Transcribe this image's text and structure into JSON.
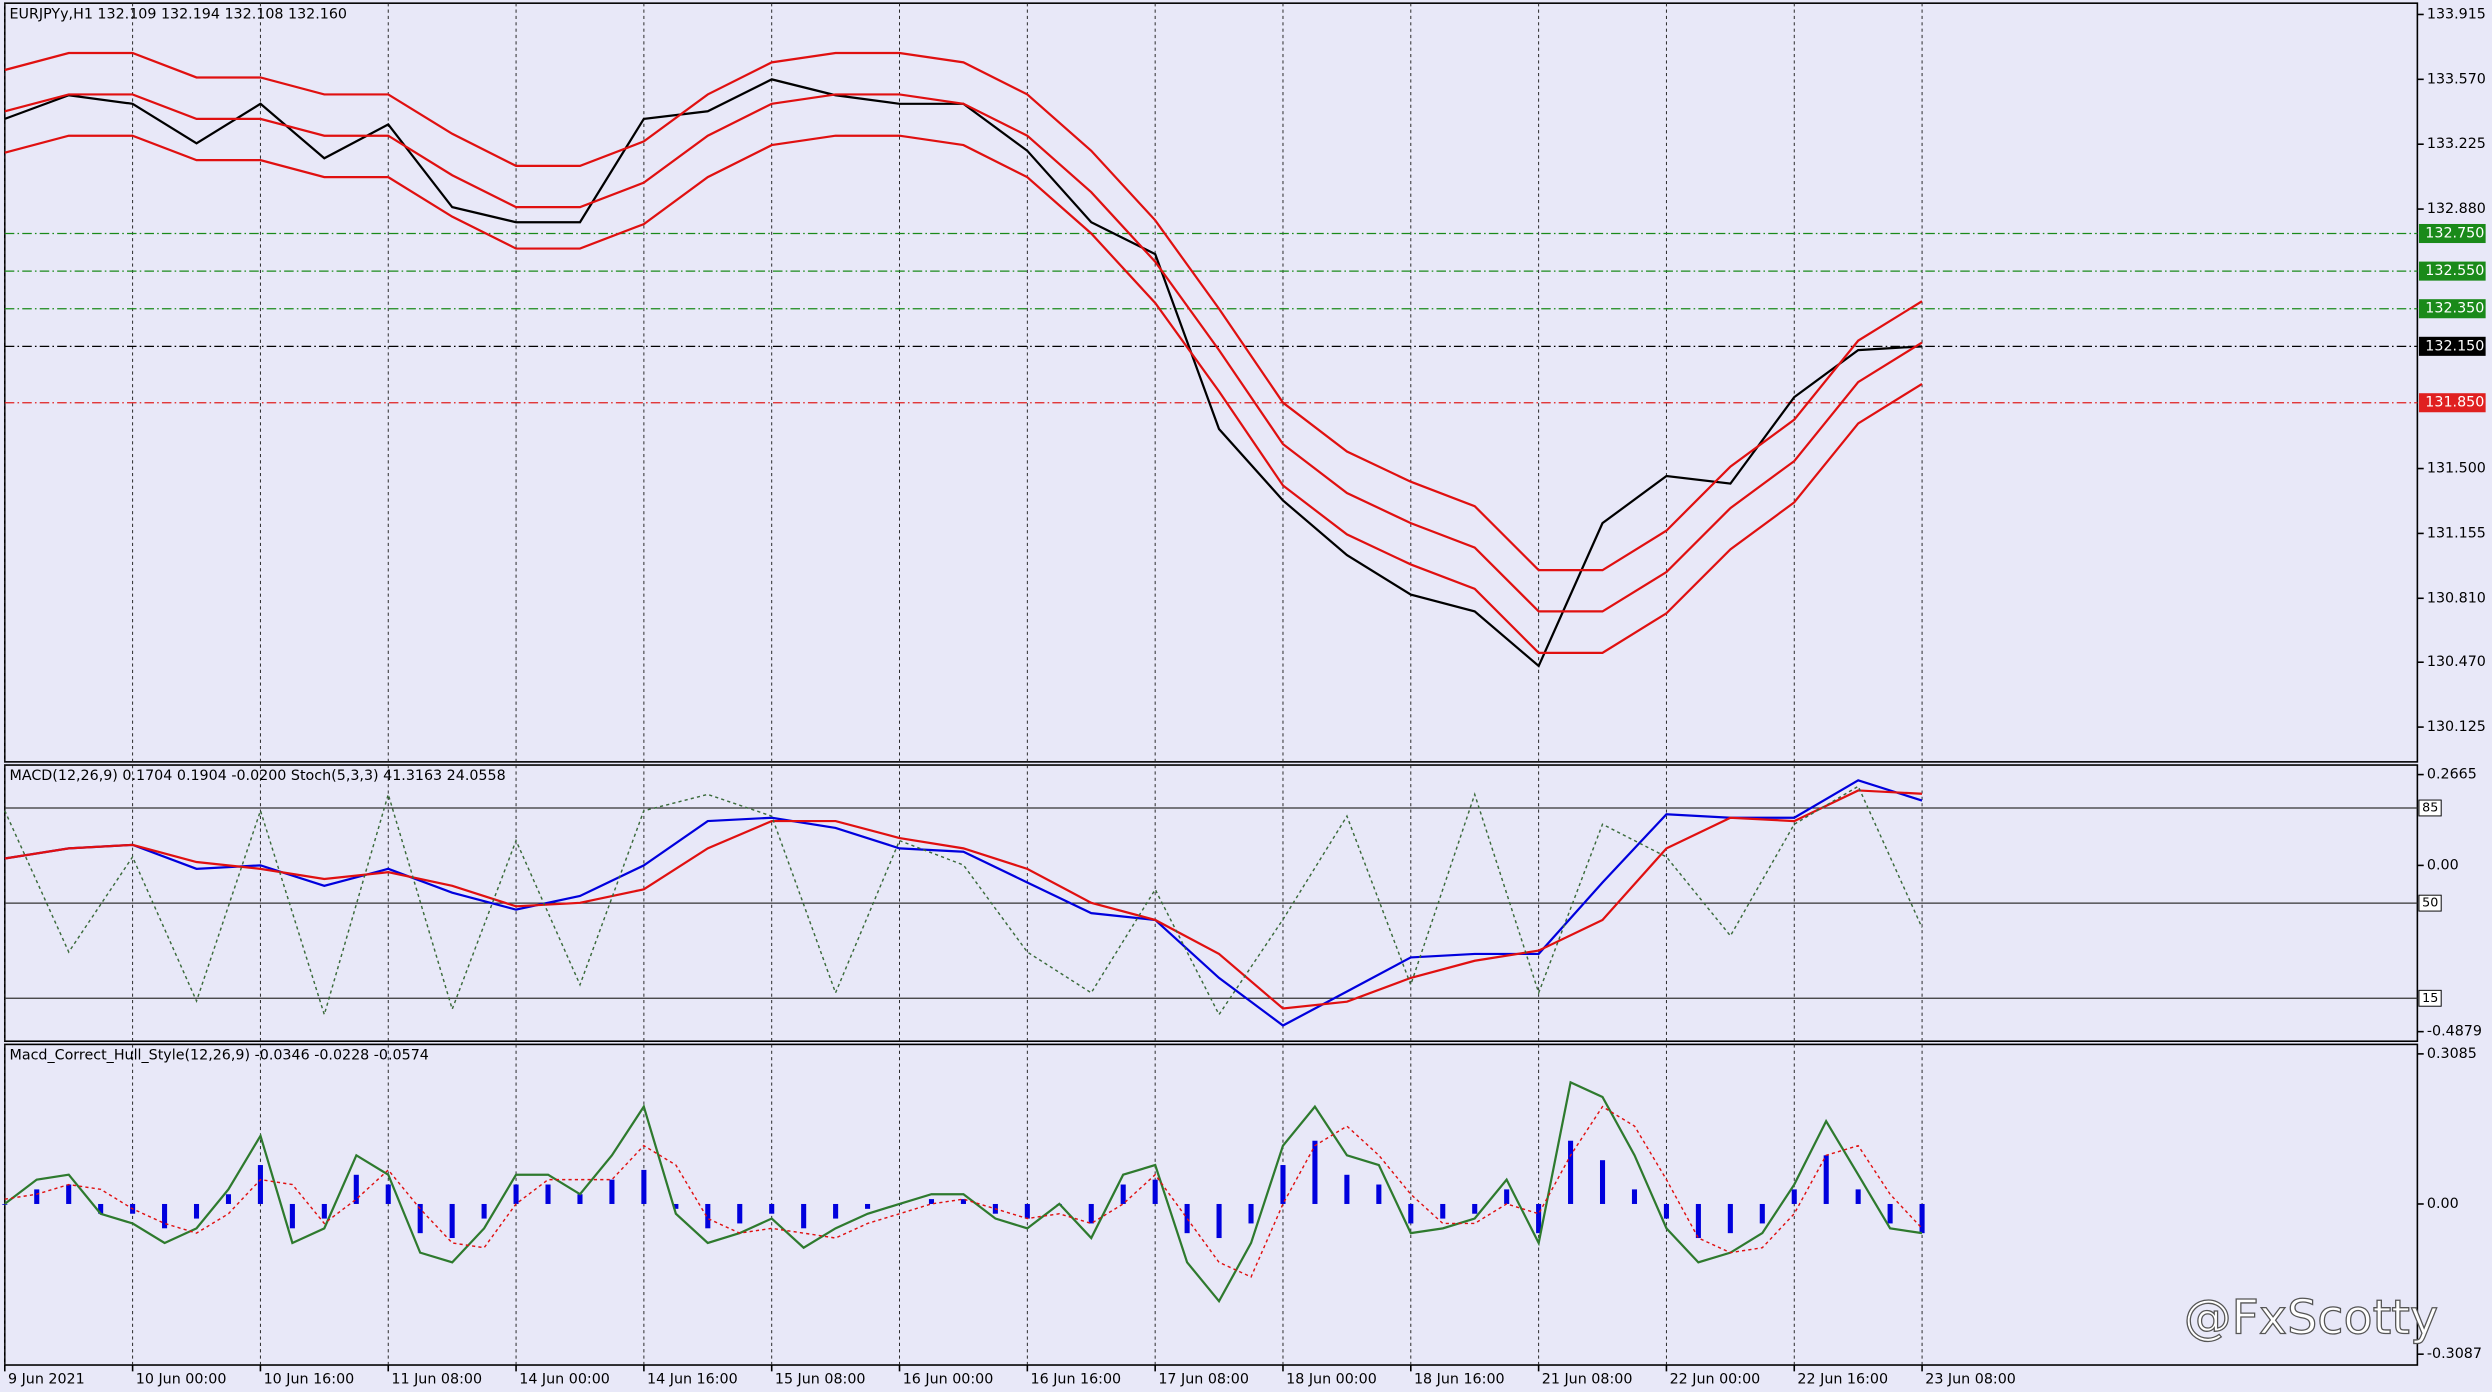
{
  "chart_data": [
    {
      "type": "line",
      "title": "EURJPYy,H1  132.109 132.194 132.108 132.160",
      "x": [
        0,
        8,
        16,
        24,
        32,
        40,
        48,
        56,
        64,
        72,
        80,
        88,
        96,
        104,
        112,
        120,
        128,
        136,
        144,
        152,
        160,
        168,
        176,
        184,
        192,
        200,
        208,
        216,
        224,
        232,
        240
      ],
      "xlim": [
        0,
        302
      ],
      "ylim": [
        129.94,
        133.975
      ],
      "yticks": [
        133.915,
        {
          "value": 133.57,
          "label": "133.570"
        },
        133.225,
        {
          "value": 132.88,
          "label": "132.880"
        },
        {
          "value": 131.5,
          "label": "131.500"
        },
        131.155,
        {
          "value": 130.81,
          "label": "130.810"
        },
        {
          "value": 130.47,
          "label": "130.470"
        },
        130.125
      ],
      "levels": [
        {
          "value": 132.75,
          "label": "132.750",
          "color": "#1a8a1a"
        },
        {
          "value": 132.55,
          "label": "132.550",
          "color": "#1a8a1a"
        },
        {
          "value": 132.35,
          "label": "132.350",
          "color": "#1a8a1a"
        },
        {
          "value": 132.15,
          "label": "132.150",
          "color": "#000000"
        },
        {
          "value": 131.85,
          "label": "131.850",
          "color": "#e02020"
        }
      ],
      "series": [
        {
          "color": "#000000",
          "style": "line",
          "values": [
            133.36,
            133.485,
            133.44,
            133.23,
            133.44,
            133.15,
            133.33,
            132.89,
            132.81,
            132.81,
            133.36,
            133.4,
            133.57,
            133.485,
            133.44,
            133.44,
            133.19,
            132.81,
            132.64,
            131.71,
            131.33,
            131.04,
            130.83,
            130.74,
            130.45,
            131.21,
            131.46,
            131.42,
            131.88,
            132.13,
            132.15
          ]
        },
        {
          "color": "#e01010",
          "style": "line",
          "values": [
            133.62,
            133.71,
            133.71,
            133.58,
            133.58,
            133.49,
            133.49,
            133.28,
            133.11,
            133.11,
            133.24,
            133.49,
            133.66,
            133.71,
            133.71,
            133.66,
            133.49,
            133.19,
            132.82,
            132.35,
            131.85,
            131.59,
            131.43,
            131.3,
            130.96,
            130.96,
            131.17,
            131.51,
            131.76,
            132.18,
            132.39
          ]
        },
        {
          "color": "#e01010",
          "style": "line",
          "values": [
            133.4,
            133.49,
            133.49,
            133.36,
            133.36,
            133.27,
            133.27,
            133.06,
            132.89,
            132.89,
            133.02,
            133.27,
            133.44,
            133.49,
            133.49,
            133.44,
            133.27,
            132.97,
            132.6,
            132.13,
            131.63,
            131.37,
            131.21,
            131.08,
            130.74,
            130.74,
            130.95,
            131.29,
            131.54,
            131.96,
            132.17
          ]
        },
        {
          "color": "#e01010",
          "style": "line",
          "values": [
            133.18,
            133.27,
            133.27,
            133.14,
            133.14,
            133.05,
            133.05,
            132.84,
            132.67,
            132.67,
            132.8,
            133.05,
            133.22,
            133.27,
            133.27,
            133.22,
            133.05,
            132.75,
            132.38,
            131.91,
            131.41,
            131.15,
            130.99,
            130.86,
            130.52,
            130.52,
            130.73,
            131.07,
            131.32,
            131.74,
            131.95
          ]
        }
      ]
    },
    {
      "type": "line",
      "title": "MACD(12,26,9) 0.1704 0.1904 -0.0200  Stoch(5,3,3) 41.3163 24.0558",
      "x": [
        0,
        8,
        16,
        24,
        32,
        40,
        48,
        56,
        64,
        72,
        80,
        88,
        96,
        104,
        112,
        120,
        128,
        136,
        144,
        152,
        160,
        168,
        176,
        184,
        192,
        200,
        208,
        216,
        224,
        232,
        240
      ],
      "xlim": [
        0,
        302
      ],
      "ylim": [
        -0.516,
        0.2945
      ],
      "yticks": [
        0.2665,
        {
          "value": 0,
          "label": "0.00"
        },
        -0.4879
      ],
      "y2lim": [
        -0.8,
        100.8
      ],
      "y2ticks": [
        15,
        50,
        85
      ],
      "series": [
        {
          "color": "#0000dd",
          "style": "line",
          "values": [
            0.02,
            0.05,
            0.06,
            -0.01,
            0,
            -0.06,
            -0.01,
            -0.08,
            -0.13,
            -0.09,
            0,
            0.13,
            0.14,
            0.11,
            0.05,
            0.04,
            -0.05,
            -0.14,
            -0.16,
            -0.33,
            -0.47,
            -0.37,
            -0.27,
            -0.26,
            -0.26,
            -0.05,
            0.15,
            0.14,
            0.14,
            0.25,
            0.19
          ]
        },
        {
          "color": "#e01010",
          "style": "line",
          "values": [
            0.02,
            0.05,
            0.06,
            0.01,
            -0.01,
            -0.04,
            -0.02,
            -0.06,
            -0.12,
            -0.11,
            -0.07,
            0.05,
            0.13,
            0.13,
            0.08,
            0.05,
            -0.01,
            -0.11,
            -0.16,
            -0.26,
            -0.42,
            -0.4,
            -0.33,
            -0.28,
            -0.25,
            -0.16,
            0.05,
            0.14,
            0.13,
            0.22,
            0.21
          ]
        },
        {
          "color": "#3a6a3a",
          "style": "dotted",
          "axis": "y2",
          "values": [
            84,
            32,
            67,
            14,
            84,
            9,
            90,
            11,
            73,
            20,
            84,
            90,
            82,
            17,
            73,
            64,
            32,
            17,
            55,
            9,
            44,
            82,
            20,
            90,
            17,
            79,
            67,
            38,
            79,
            93,
            41
          ]
        }
      ]
    },
    {
      "type": "bar",
      "title": "Macd_Correct_Hull_Style(12,26,9) -0.0346 -0.0228 -0.0574",
      "x": [
        0,
        4,
        8,
        12,
        16,
        20,
        24,
        28,
        32,
        36,
        40,
        44,
        48,
        52,
        56,
        60,
        64,
        68,
        72,
        76,
        80,
        84,
        88,
        92,
        96,
        100,
        104,
        108,
        112,
        116,
        120,
        124,
        128,
        132,
        136,
        140,
        144,
        148,
        152,
        156,
        160,
        164,
        168,
        172,
        176,
        180,
        184,
        188,
        192,
        196,
        200,
        204,
        208,
        212,
        216,
        220,
        224,
        228,
        232,
        236,
        240
      ],
      "xlim": [
        0,
        302
      ],
      "ylim": [
        -0.331,
        0.328
      ],
      "yticks": [
        0.3085,
        {
          "value": 0,
          "label": "0.00"
        },
        -0.3087
      ],
      "xticks": [
        {
          "value": 0,
          "label": "9 Jun 2021"
        },
        {
          "value": 16,
          "label": "10 Jun 00:00"
        },
        {
          "value": 32,
          "label": "10 Jun 16:00"
        },
        {
          "value": 48,
          "label": "11 Jun 08:00"
        },
        {
          "value": 64,
          "label": "14 Jun 00:00"
        },
        {
          "value": 80,
          "label": "14 Jun 16:00"
        },
        {
          "value": 96,
          "label": "15 Jun 08:00"
        },
        {
          "value": 112,
          "label": "16 Jun 00:00"
        },
        {
          "value": 128,
          "label": "16 Jun 16:00"
        },
        {
          "value": 144,
          "label": "17 Jun 08:00"
        },
        {
          "value": 160,
          "label": "18 Jun 00:00"
        },
        {
          "value": 176,
          "label": "18 Jun 16:00"
        },
        {
          "value": 192,
          "label": "21 Jun 08:00"
        },
        {
          "value": 208,
          "label": "22 Jun 00:00"
        },
        {
          "value": 224,
          "label": "22 Jun 16:00"
        },
        {
          "value": 240,
          "label": "23 Jun 08:00"
        }
      ],
      "series": [
        {
          "color": "#0000dd",
          "style": "bar",
          "values": [
            0,
            0.03,
            0.04,
            -0.02,
            -0.02,
            -0.05,
            -0.03,
            0.02,
            0.08,
            -0.05,
            -0.03,
            0.06,
            0.04,
            -0.06,
            -0.07,
            -0.03,
            0.04,
            0.04,
            0.02,
            0.05,
            0.07,
            -0.01,
            -0.05,
            -0.04,
            -0.02,
            -0.05,
            -0.03,
            -0.01,
            0,
            0.01,
            0.01,
            -0.02,
            -0.03,
            0,
            -0.04,
            0.04,
            0.05,
            -0.06,
            -0.07,
            -0.04,
            0.08,
            0.13,
            0.06,
            0.04,
            -0.04,
            -0.03,
            -0.02,
            0.03,
            -0.06,
            0.13,
            0.09,
            0.03,
            -0.03,
            -0.07,
            -0.06,
            -0.04,
            0.03,
            0.1,
            0.03,
            -0.04,
            -0.06
          ]
        },
        {
          "color": "#2e7a2e",
          "style": "line",
          "values": [
            0,
            0.05,
            0.06,
            -0.02,
            -0.04,
            -0.08,
            -0.05,
            0.03,
            0.14,
            -0.08,
            -0.05,
            0.1,
            0.06,
            -0.1,
            -0.12,
            -0.05,
            0.06,
            0.06,
            0.02,
            0.1,
            0.2,
            -0.02,
            -0.08,
            -0.06,
            -0.03,
            -0.09,
            -0.05,
            -0.02,
            0,
            0.02,
            0.02,
            -0.03,
            -0.05,
            0,
            -0.07,
            0.06,
            0.08,
            -0.12,
            -0.2,
            -0.08,
            0.12,
            0.2,
            0.1,
            0.08,
            -0.06,
            -0.05,
            -0.03,
            0.05,
            -0.08,
            0.25,
            0.22,
            0.1,
            -0.05,
            -0.12,
            -0.1,
            -0.06,
            0.04,
            0.17,
            0.06,
            -0.05,
            -0.06
          ]
        },
        {
          "color": "#e01010",
          "style": "dotted",
          "values": [
            0.01,
            0.02,
            0.04,
            0.03,
            -0.01,
            -0.04,
            -0.06,
            -0.02,
            0.05,
            0.04,
            -0.04,
            0.01,
            0.07,
            -0.01,
            -0.08,
            -0.09,
            0,
            0.05,
            0.05,
            0.05,
            0.12,
            0.08,
            -0.03,
            -0.06,
            -0.05,
            -0.06,
            -0.07,
            -0.04,
            -0.02,
            0,
            0.01,
            -0.01,
            -0.03,
            -0.02,
            -0.04,
            0,
            0.06,
            -0.03,
            -0.12,
            -0.15,
            0,
            0.12,
            0.16,
            0.1,
            0.02,
            -0.04,
            -0.04,
            0,
            -0.02,
            0.1,
            0.2,
            0.16,
            0.05,
            -0.07,
            -0.1,
            -0.09,
            -0.02,
            0.1,
            0.12,
            0.02,
            -0.05
          ]
        }
      ]
    }
  ],
  "watermark": "@FxScotty"
}
